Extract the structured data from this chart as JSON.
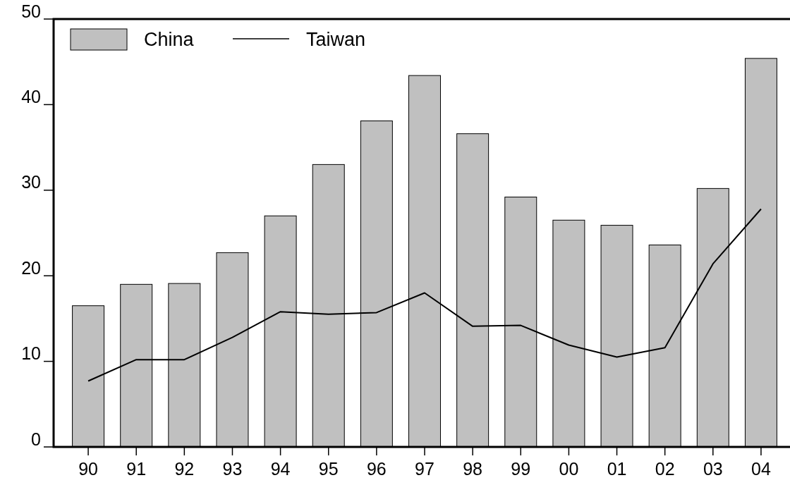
{
  "chart_data": {
    "type": "bar",
    "categories": [
      "90",
      "91",
      "92",
      "93",
      "94",
      "95",
      "96",
      "97",
      "98",
      "99",
      "00",
      "01",
      "02",
      "03",
      "04"
    ],
    "series": [
      {
        "name": "China",
        "color": "#c0c0c0",
        "values": [
          16.5,
          19.0,
          19.1,
          22.7,
          27.0,
          33.0,
          38.1,
          43.4,
          36.6,
          29.2,
          26.5,
          25.9,
          23.6,
          30.2,
          45.4
        ]
      },
      {
        "name": "Taiwan",
        "type": "line",
        "color": "#000000",
        "values": [
          7.7,
          10.2,
          10.2,
          12.8,
          15.8,
          15.5,
          15.7,
          18.0,
          14.1,
          14.2,
          11.9,
          10.5,
          11.6,
          21.4,
          27.8
        ]
      }
    ],
    "ylim": [
      0,
      50
    ],
    "yticks": [
      0,
      10,
      20,
      30,
      40,
      50
    ],
    "grid": false,
    "legend": "top left",
    "marker": "none",
    "line_style": "solid"
  }
}
